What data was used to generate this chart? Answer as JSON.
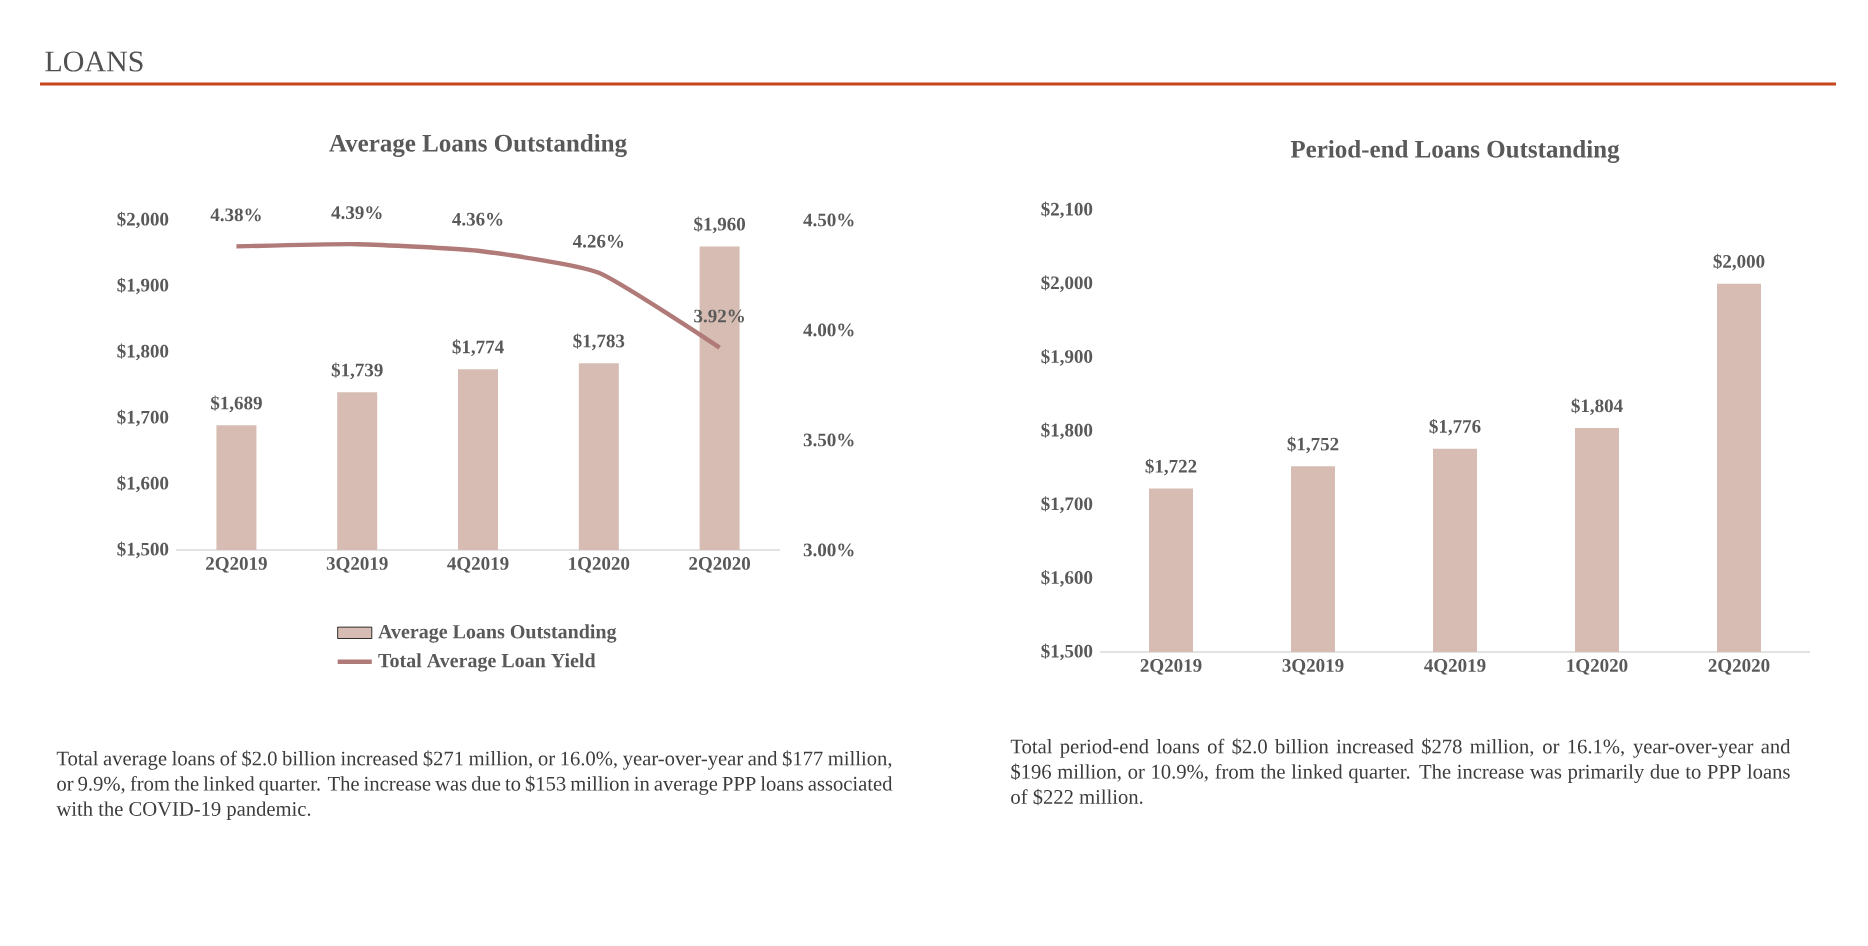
{
  "chart_data": [
    {
      "type": "bar",
      "title": "Average Loans Outstanding",
      "categories": [
        "2Q2019",
        "3Q2019",
        "4Q2019",
        "1Q2020",
        "2Q2020"
      ],
      "series": [
        {
          "name": "Average Loans Outstanding",
          "color": "#d6bcb2",
          "values": [
            1689,
            1739,
            1774,
            1783,
            1960
          ],
          "value_labels": [
            "$1,689",
            "$1,739",
            "$1,774",
            "$1,783",
            "$1,960"
          ]
        },
        {
          "name": "Total Average Loan Yield",
          "type": "line",
          "axis": "y2",
          "color": "#b07a78",
          "values": [
            4.38,
            4.39,
            4.36,
            4.26,
            3.92
          ],
          "value_labels": [
            "4.38%",
            "4.39%",
            "4.36%",
            "4.26%",
            "3.92%"
          ]
        }
      ],
      "ylim": [
        1500,
        2000
      ],
      "yticks": [
        {
          "value": 1500,
          "label": "$1,500"
        },
        {
          "value": 1600,
          "label": "$1,600"
        },
        {
          "value": 1700,
          "label": "$1,700"
        },
        {
          "value": 1800,
          "label": "$1,800"
        },
        {
          "value": 1900,
          "label": "$1,900"
        },
        {
          "value": 2000,
          "label": "$2,000"
        }
      ],
      "y2lim": [
        3.0,
        4.5
      ],
      "y2ticks": [
        {
          "value": 3.0,
          "label": "3.00%"
        },
        {
          "value": 3.5,
          "label": "3.50%"
        },
        {
          "value": 4.0,
          "label": "4.00%"
        },
        {
          "value": 4.5,
          "label": "4.50%"
        }
      ],
      "legend": "bottom",
      "annotations": [
        "LOANS",
        "Total average loans of $2.0 billion increased $271 million, or 16.0%, year-over-year and $177 million, or 9.9%, from the linked quarter. The increase was due to $153 million in average PPP loans associated with the COVID-19 pandemic."
      ]
    },
    {
      "type": "bar",
      "title": "Period-end Loans Outstanding",
      "categories": [
        "2Q2019",
        "3Q2019",
        "4Q2019",
        "1Q2020",
        "2Q2020"
      ],
      "series": [
        {
          "color": "#d6bcb2",
          "values": [
            1722,
            1752,
            1776,
            1804,
            2000
          ],
          "value_labels": [
            "$1,722",
            "$1,752",
            "$1,776",
            "$1,804",
            "$2,000"
          ]
        }
      ],
      "ylim": [
        1500,
        2100
      ],
      "yticks": [
        {
          "value": 1500,
          "label": "$1,500"
        },
        {
          "value": 1600,
          "label": "$1,600"
        },
        {
          "value": 1700,
          "label": "$1,700"
        },
        {
          "value": 1800,
          "label": "$1,800"
        },
        {
          "value": 1900,
          "label": "$1,900"
        },
        {
          "value": 2000,
          "label": "$2,000"
        },
        {
          "value": 2100,
          "label": "$2,100"
        }
      ],
      "annotations": [
        "Total period-end loans of $2.0 billion increased $278 million, or 16.1%, year-over-year and $196 million, or 10.9%, from the linked quarter. The increase was primarily due to PPP loans of $222 million."
      ]
    }
  ]
}
